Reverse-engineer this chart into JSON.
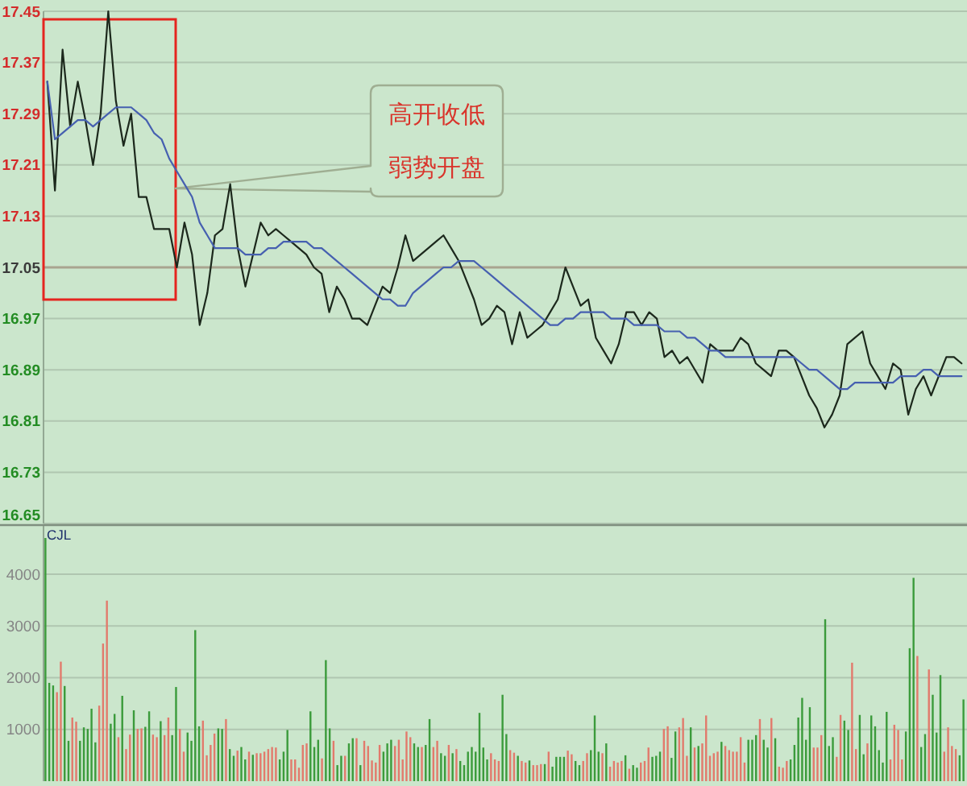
{
  "chart_data": [
    {
      "type": "line",
      "categories": [
        null,
        null,
        null,
        null,
        null,
        null,
        null,
        null,
        null,
        null,
        null,
        null,
        null,
        null,
        null,
        null,
        null,
        null,
        null,
        null,
        null,
        null,
        null,
        null,
        null,
        null,
        null,
        null,
        null,
        null,
        null,
        null,
        null,
        null,
        null,
        null,
        null,
        null,
        null,
        null,
        null,
        null,
        null,
        null,
        null,
        null,
        null,
        null,
        null,
        null,
        null,
        null,
        null,
        null,
        null,
        null,
        null,
        null,
        null,
        null,
        null,
        null,
        null,
        null,
        null,
        null,
        null,
        null,
        null,
        null,
        null,
        null,
        null,
        null,
        null,
        null,
        null,
        null,
        null,
        null,
        null,
        null,
        null,
        null,
        null,
        null,
        null,
        null,
        null,
        null,
        null,
        null,
        null,
        null,
        null,
        null,
        null,
        null,
        null,
        null,
        null,
        null,
        null,
        null,
        null,
        null,
        null,
        null,
        null,
        null,
        null,
        null,
        null,
        null,
        null,
        null,
        null,
        null,
        null,
        null,
        null
      ],
      "series": [
        {
          "color": "#1c281c",
          "values": [
            17.34,
            17.17,
            17.39,
            17.27,
            17.34,
            17.28,
            17.21,
            17.29,
            17.45,
            17.31,
            17.24,
            17.29,
            17.16,
            17.16,
            17.11,
            17.11,
            17.11,
            17.05,
            17.12,
            17.07,
            16.96,
            17.01,
            17.1,
            17.11,
            17.18,
            17.08,
            17.02,
            17.07,
            17.12,
            17.1,
            17.11,
            17.1,
            17.09,
            17.08,
            17.07,
            17.05,
            17.04,
            16.98,
            17.02,
            17.0,
            16.97,
            16.97,
            16.96,
            16.99,
            17.02,
            17.01,
            17.05,
            17.1,
            17.06,
            17.07,
            17.08,
            17.09,
            17.1,
            17.08,
            17.06,
            17.03,
            17.0,
            16.96,
            16.97,
            16.99,
            16.98,
            16.93,
            16.98,
            16.94,
            16.95,
            16.96,
            16.98,
            17.0,
            17.05,
            17.02,
            16.99,
            17.0,
            16.94,
            16.92,
            16.9,
            16.93,
            16.98,
            16.98,
            16.96,
            16.98,
            16.97,
            16.91,
            16.92,
            16.9,
            16.91,
            16.89,
            16.87,
            16.93,
            16.92,
            16.92,
            16.92,
            16.94,
            16.93,
            16.9,
            16.89,
            16.88,
            16.92,
            16.92,
            16.91,
            16.88,
            16.85,
            16.83,
            16.8,
            16.82,
            16.85,
            16.93,
            16.94,
            16.95,
            16.9,
            16.88,
            16.86,
            16.9,
            16.89,
            16.82,
            16.86,
            16.88,
            16.85,
            16.88,
            16.91,
            16.91,
            16.9
          ]
        },
        {
          "color": "#4660b0",
          "values": [
            17.34,
            17.25,
            17.26,
            17.27,
            17.28,
            17.28,
            17.27,
            17.28,
            17.29,
            17.3,
            17.3,
            17.3,
            17.29,
            17.28,
            17.26,
            17.25,
            17.22,
            17.2,
            17.18,
            17.16,
            17.12,
            17.1,
            17.08,
            17.08,
            17.08,
            17.08,
            17.07,
            17.07,
            17.07,
            17.08,
            17.08,
            17.09,
            17.09,
            17.09,
            17.09,
            17.08,
            17.08,
            17.07,
            17.06,
            17.05,
            17.04,
            17.03,
            17.02,
            17.01,
            17.0,
            17.0,
            16.99,
            16.99,
            17.01,
            17.02,
            17.03,
            17.04,
            17.05,
            17.05,
            17.06,
            17.06,
            17.06,
            17.05,
            17.04,
            17.03,
            17.02,
            17.01,
            17.0,
            16.99,
            16.98,
            16.97,
            16.96,
            16.96,
            16.97,
            16.97,
            16.98,
            16.98,
            16.98,
            16.98,
            16.97,
            16.97,
            16.97,
            16.96,
            16.96,
            16.96,
            16.96,
            16.95,
            16.95,
            16.95,
            16.94,
            16.94,
            16.93,
            16.92,
            16.92,
            16.91,
            16.91,
            16.91,
            16.91,
            16.91,
            16.91,
            16.91,
            16.91,
            16.91,
            16.91,
            16.9,
            16.89,
            16.89,
            16.88,
            16.87,
            16.86,
            16.86,
            16.87,
            16.87,
            16.87,
            16.87,
            16.87,
            16.87,
            16.88,
            16.88,
            16.88,
            16.89,
            16.89,
            16.88,
            16.88,
            16.88,
            16.88
          ]
        }
      ],
      "ylim": [
        16.65,
        17.45
      ],
      "yticks": [
        16.65,
        16.73,
        16.81,
        16.89,
        16.97,
        17.05,
        17.13,
        17.21,
        17.29,
        17.37,
        17.45
      ],
      "grid": "y",
      "ref_lines": [
        {
          "axis": "y",
          "value": 17.05,
          "color": "#a9a48f"
        }
      ],
      "annotations": [
        "高开收低弱势开盘"
      ]
    },
    {
      "type": "bar",
      "title": "CJL",
      "categories": [
        null,
        null,
        null,
        null,
        null,
        null,
        null,
        null,
        null,
        null,
        null,
        null,
        null,
        null,
        null,
        null,
        null,
        null,
        null,
        null,
        null,
        null,
        null,
        null,
        null,
        null,
        null,
        null,
        null,
        null,
        null,
        null,
        null,
        null,
        null,
        null,
        null,
        null,
        null,
        null,
        null,
        null,
        null,
        null,
        null,
        null,
        null,
        null,
        null,
        null,
        null,
        null,
        null,
        null,
        null,
        null,
        null,
        null,
        null,
        null,
        null,
        null,
        null,
        null,
        null,
        null,
        null,
        null,
        null,
        null,
        null,
        null,
        null,
        null,
        null,
        null,
        null,
        null,
        null,
        null,
        null,
        null,
        null,
        null,
        null,
        null,
        null,
        null,
        null,
        null,
        null,
        null,
        null,
        null,
        null,
        null,
        null,
        null,
        null,
        null,
        null,
        null,
        null,
        null,
        null,
        null,
        null,
        null,
        null,
        null,
        null,
        null,
        null,
        null,
        null,
        null,
        null,
        null,
        null,
        null,
        null,
        null,
        null,
        null,
        null,
        null,
        null,
        null,
        null,
        null,
        null,
        null,
        null,
        null,
        null,
        null,
        null,
        null,
        null,
        null,
        null,
        null,
        null,
        null,
        null,
        null,
        null,
        null,
        null,
        null,
        null,
        null,
        null,
        null,
        null,
        null,
        null,
        null,
        null,
        null,
        null,
        null,
        null,
        null,
        null,
        null,
        null,
        null,
        null,
        null,
        null,
        null,
        null,
        null,
        null,
        null,
        null,
        null,
        null,
        null,
        null,
        null,
        null,
        null,
        null,
        null,
        null,
        null,
        null,
        null,
        null,
        null,
        null,
        null,
        null,
        null,
        null,
        null,
        null,
        null,
        null,
        null,
        null,
        null,
        null,
        null,
        null,
        null,
        null,
        null,
        null,
        null,
        null,
        null,
        null,
        null,
        null,
        null,
        null,
        null,
        null,
        null,
        null,
        null,
        null,
        null,
        null,
        null,
        null,
        null,
        null,
        null,
        null,
        null,
        null,
        null,
        null,
        null,
        null,
        null
      ],
      "values": [
        4700,
        1900,
        1850,
        1720,
        2310,
        1840,
        780,
        1230,
        1150,
        780,
        1040,
        1010,
        1400,
        750,
        1460,
        2660,
        3490,
        1110,
        1300,
        850,
        1650,
        620,
        900,
        1370,
        1010,
        1020,
        1050,
        1350,
        900,
        850,
        1160,
        890,
        1230,
        890,
        1820,
        1010,
        570,
        940,
        780,
        2920,
        1060,
        1170,
        500,
        700,
        920,
        1020,
        1010,
        1200,
        620,
        490,
        590,
        660,
        420,
        570,
        510,
        540,
        540,
        570,
        620,
        660,
        650,
        420,
        570,
        990,
        420,
        420,
        260,
        700,
        730,
        1350,
        660,
        800,
        440,
        2340,
        1020,
        780,
        310,
        490,
        490,
        730,
        830,
        830,
        310,
        780,
        680,
        400,
        360,
        700,
        570,
        730,
        800,
        680,
        800,
        420,
        960,
        850,
        730,
        660,
        660,
        700,
        1200,
        660,
        780,
        540,
        490,
        700,
        540,
        620,
        390,
        310,
        570,
        660,
        570,
        1320,
        650,
        420,
        540,
        420,
        390,
        1670,
        910,
        600,
        550,
        490,
        390,
        360,
        400,
        310,
        310,
        330,
        330,
        570,
        280,
        470,
        470,
        470,
        590,
        520,
        390,
        310,
        390,
        540,
        600,
        1270,
        570,
        540,
        730,
        280,
        390,
        360,
        390,
        500,
        240,
        310,
        260,
        360,
        390,
        650,
        470,
        490,
        570,
        1010,
        1060,
        450,
        960,
        1040,
        1220,
        490,
        1040,
        650,
        680,
        730,
        1270,
        490,
        540,
        570,
        760,
        680,
        600,
        570,
        570,
        850,
        360,
        800,
        800,
        890,
        1200,
        800,
        650,
        1220,
        830,
        280,
        260,
        390,
        420,
        700,
        1230,
        1610,
        800,
        1430,
        650,
        650,
        890,
        3130,
        680,
        850,
        470,
        1280,
        1170,
        990,
        2290,
        620,
        1280,
        520,
        730,
        1270,
        1060,
        600,
        360,
        1340,
        420,
        1090,
        990,
        420,
        960,
        2570,
        3930,
        2420,
        660,
        910,
        2160,
        1670,
        940,
        2050,
        570,
        1040,
        680,
        620,
        500,
        1580
      ],
      "colors": [
        "#3b9b3b",
        "#3b9b3b",
        "#3b9b3b",
        "#e27a6c",
        "#e27a6c",
        "#3b9b3b",
        "#3b9b3b",
        "#e27a6c",
        "#e27a6c",
        "#3b9b3b",
        "#3b9b3b",
        "#3b9b3b",
        "#3b9b3b",
        "#3b9b3b",
        "#e27a6c",
        "#e27a6c",
        "#e27a6c",
        "#3b9b3b",
        "#3b9b3b",
        "#e27a6c",
        "#3b9b3b",
        "#e27a6c",
        "#e27a6c",
        "#3b9b3b",
        "#e27a6c",
        "#e27a6c",
        "#3b9b3b",
        "#3b9b3b",
        "#e27a6c",
        "#e27a6c",
        "#3b9b3b",
        "#e27a6c",
        "#e27a6c",
        "#3b9b3b",
        "#3b9b3b",
        "#e27a6c",
        "#e27a6c",
        "#3b9b3b",
        "#3b9b3b",
        "#3b9b3b",
        "#3b9b3b",
        "#e27a6c",
        "#e27a6c",
        "#e27a6c",
        "#e27a6c",
        "#3b9b3b",
        "#3b9b3b",
        "#e27a6c",
        "#3b9b3b",
        "#3b9b3b",
        "#e27a6c",
        "#3b9b3b",
        "#3b9b3b",
        "#e27a6c",
        "#3b9b3b",
        "#e27a6c",
        "#e27a6c",
        "#e27a6c",
        "#e27a6c",
        "#e27a6c",
        "#e27a6c",
        "#3b9b3b",
        "#3b9b3b",
        "#3b9b3b",
        "#e27a6c",
        "#e27a6c",
        "#e27a6c",
        "#e27a6c",
        "#e27a6c",
        "#3b9b3b",
        "#3b9b3b",
        "#3b9b3b",
        "#e27a6c",
        "#3b9b3b",
        "#3b9b3b",
        "#e27a6c",
        "#3b9b3b",
        "#3b9b3b",
        "#e27a6c",
        "#3b9b3b",
        "#3b9b3b",
        "#e27a6c",
        "#3b9b3b",
        "#e27a6c",
        "#e27a6c",
        "#e27a6c",
        "#e27a6c",
        "#e27a6c",
        "#3b9b3b",
        "#3b9b3b",
        "#3b9b3b",
        "#e27a6c",
        "#e27a6c",
        "#e27a6c",
        "#e27a6c",
        "#e27a6c",
        "#3b9b3b",
        "#3b9b3b",
        "#e27a6c",
        "#3b9b3b",
        "#3b9b3b",
        "#e27a6c",
        "#e27a6c",
        "#3b9b3b",
        "#3b9b3b",
        "#e27a6c",
        "#3b9b3b",
        "#e27a6c",
        "#3b9b3b",
        "#3b9b3b",
        "#3b9b3b",
        "#3b9b3b",
        "#3b9b3b",
        "#3b9b3b",
        "#3b9b3b",
        "#3b9b3b",
        "#e27a6c",
        "#e27a6c",
        "#e27a6c",
        "#3b9b3b",
        "#3b9b3b",
        "#e27a6c",
        "#e27a6c",
        "#3b9b3b",
        "#e27a6c",
        "#e27a6c",
        "#3b9b3b",
        "#e27a6c",
        "#e27a6c",
        "#e27a6c",
        "#3b9b3b",
        "#e27a6c",
        "#3b9b3b",
        "#3b9b3b",
        "#3b9b3b",
        "#3b9b3b",
        "#e27a6c",
        "#e27a6c",
        "#3b9b3b",
        "#3b9b3b",
        "#e27a6c",
        "#e27a6c",
        "#3b9b3b",
        "#3b9b3b",
        "#3b9b3b",
        "#e27a6c",
        "#3b9b3b",
        "#e27a6c",
        "#e27a6c",
        "#e27a6c",
        "#e27a6c",
        "#3b9b3b",
        "#e27a6c",
        "#3b9b3b",
        "#3b9b3b",
        "#e27a6c",
        "#e27a6c",
        "#e27a6c",
        "#3b9b3b",
        "#3b9b3b",
        "#3b9b3b",
        "#e27a6c",
        "#e27a6c",
        "#3b9b3b",
        "#3b9b3b",
        "#e27a6c",
        "#e27a6c",
        "#e27a6c",
        "#3b9b3b",
        "#e27a6c",
        "#3b9b3b",
        "#e27a6c",
        "#e27a6c",
        "#e27a6c",
        "#e27a6c",
        "#e27a6c",
        "#3b9b3b",
        "#e27a6c",
        "#e27a6c",
        "#e27a6c",
        "#e27a6c",
        "#e27a6c",
        "#e27a6c",
        "#3b9b3b",
        "#3b9b3b",
        "#3b9b3b",
        "#e27a6c",
        "#3b9b3b",
        "#3b9b3b",
        "#e27a6c",
        "#3b9b3b",
        "#e27a6c",
        "#e27a6c",
        "#e27a6c",
        "#3b9b3b",
        "#3b9b3b",
        "#3b9b3b",
        "#3b9b3b",
        "#3b9b3b",
        "#3b9b3b",
        "#e27a6c",
        "#e27a6c",
        "#e27a6c",
        "#3b9b3b",
        "#3b9b3b",
        "#3b9b3b",
        "#e27a6c",
        "#e27a6c",
        "#3b9b3b",
        "#3b9b3b",
        "#e27a6c",
        "#e27a6c",
        "#3b9b3b",
        "#3b9b3b",
        "#e27a6c",
        "#3b9b3b",
        "#3b9b3b",
        "#3b9b3b",
        "#3b9b3b",
        "#3b9b3b",
        "#e27a6c",
        "#e27a6c",
        "#e27a6c",
        "#e27a6c",
        "#3b9b3b",
        "#3b9b3b",
        "#3b9b3b",
        "#e27a6c",
        "#3b9b3b",
        "#3b9b3b",
        "#e27a6c",
        "#3b9b3b",
        "#3b9b3b",
        "#3b9b3b",
        "#e27a6c",
        "#e27a6c",
        "#e27a6c",
        "#e27a6c",
        "#3b9b3b",
        "#3b9b3b"
      ],
      "ylim": [
        0,
        4950
      ],
      "yticks": [
        1000,
        2000,
        3000,
        4000
      ],
      "grid": "y"
    }
  ]
}
